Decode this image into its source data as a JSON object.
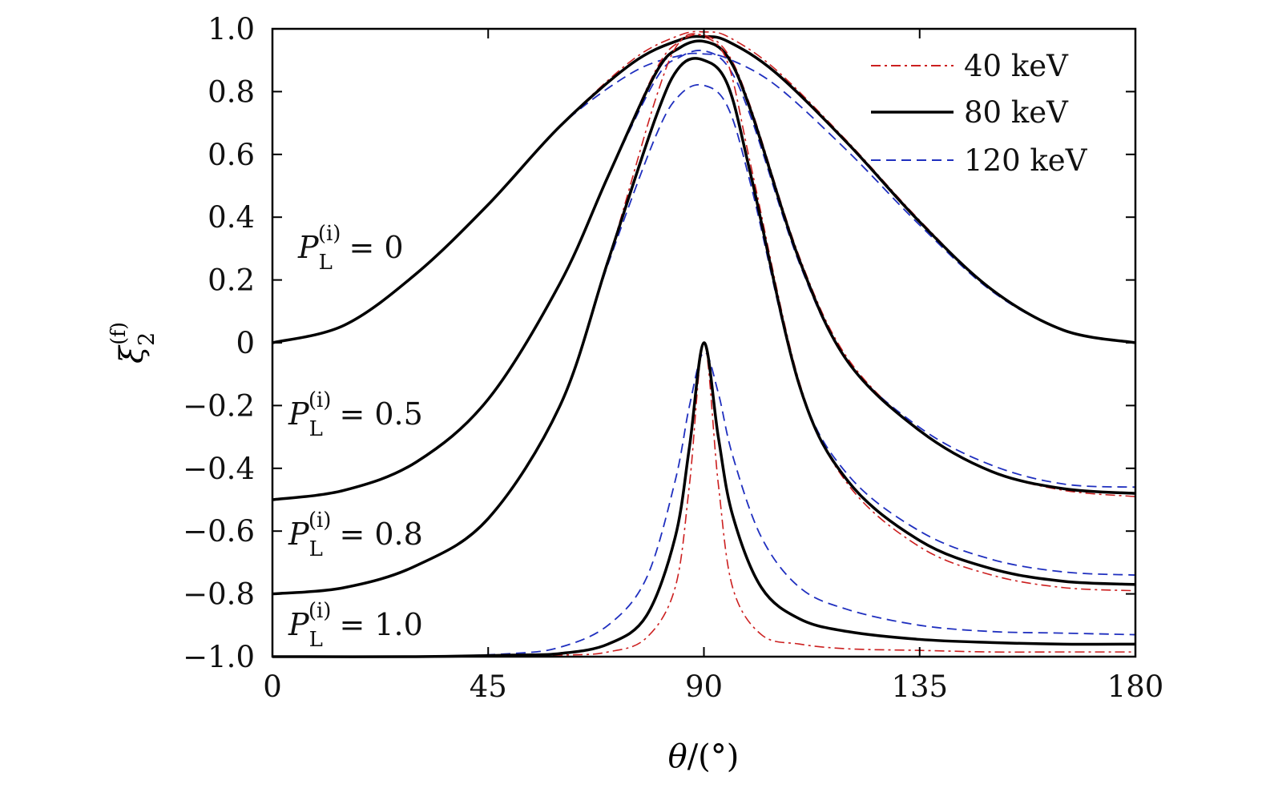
{
  "chart_data": {
    "type": "line",
    "xlabel_main": "θ",
    "xlabel_unit": "/(°)",
    "ylabel_main": "ξ",
    "ylabel_sub": "2",
    "ylabel_sup": "(f)",
    "xlim": [
      0,
      180
    ],
    "ylim": [
      -1.0,
      1.0
    ],
    "xticks": [
      0,
      45,
      90,
      135,
      180
    ],
    "xtick_labels": [
      "0",
      "45",
      "90",
      "135",
      "180"
    ],
    "yticks": [
      1.0,
      0.8,
      0.6,
      0.4,
      0.2,
      0,
      -0.2,
      -0.4,
      -0.6,
      -0.8,
      -1.0
    ],
    "ytick_labels": [
      "1.0",
      "0.8",
      "0.6",
      "0.4",
      "0.2",
      "0",
      "−0.2",
      "−0.4",
      "−0.6",
      "−0.8",
      "−1.0"
    ],
    "grid": false,
    "legend_position": "top-right",
    "legend": [
      {
        "label": "40 keV",
        "color": "#cc1f1f",
        "style": "dashdot"
      },
      {
        "label": "80 keV",
        "color": "#000000",
        "style": "solid"
      },
      {
        "label": "120 keV",
        "color": "#1f2fbf",
        "style": "dashed"
      }
    ],
    "curve_labels": [
      {
        "prefix": "P",
        "sub": "L",
        "sup": "(i)",
        "value": "= 0"
      },
      {
        "prefix": "P",
        "sub": "L",
        "sup": "(i)",
        "value": "= 0.5"
      },
      {
        "prefix": "P",
        "sub": "L",
        "sup": "(i)",
        "value": "= 0.8"
      },
      {
        "prefix": "P",
        "sub": "L",
        "sup": "(i)",
        "value": "= 1.0"
      }
    ],
    "groups": [
      {
        "PL": 0,
        "series": [
          {
            "energy": "40 keV",
            "x": [
              0,
              15,
              30,
              45,
              60,
              75,
              85,
              90,
              95,
              105,
              120,
              135,
              150,
              165,
              180
            ],
            "y": [
              0,
              0.056,
              0.22,
              0.44,
              0.69,
              0.9,
              0.98,
              0.99,
              0.975,
              0.87,
              0.64,
              0.39,
              0.17,
              0.04,
              0
            ]
          },
          {
            "energy": "80 keV",
            "x": [
              0,
              15,
              30,
              45,
              60,
              75,
              85,
              90,
              95,
              105,
              120,
              135,
              150,
              165,
              180
            ],
            "y": [
              0,
              0.056,
              0.22,
              0.44,
              0.69,
              0.89,
              0.965,
              0.975,
              0.96,
              0.86,
              0.635,
              0.385,
              0.17,
              0.04,
              0
            ]
          },
          {
            "energy": "120 keV",
            "x": [
              0,
              15,
              30,
              45,
              60,
              75,
              85,
              90,
              95,
              105,
              120,
              135,
              150,
              165,
              180
            ],
            "y": [
              0,
              0.056,
              0.22,
              0.44,
              0.69,
              0.86,
              0.915,
              0.92,
              0.905,
              0.82,
              0.61,
              0.375,
              0.165,
              0.04,
              0
            ]
          }
        ]
      },
      {
        "PL": 0.5,
        "series": [
          {
            "energy": "40 keV",
            "x": [
              0,
              15,
              30,
              45,
              60,
              70,
              80,
              85,
              90,
              95,
              100,
              110,
              120,
              135,
              150,
              165,
              180
            ],
            "y": [
              -0.5,
              -0.47,
              -0.38,
              -0.18,
              0.19,
              0.53,
              0.87,
              0.96,
              0.98,
              0.92,
              0.74,
              0.27,
              -0.05,
              -0.28,
              -0.41,
              -0.47,
              -0.49
            ]
          },
          {
            "energy": "80 keV",
            "x": [
              0,
              15,
              30,
              45,
              60,
              70,
              80,
              85,
              90,
              95,
              100,
              110,
              120,
              135,
              150,
              165,
              180
            ],
            "y": [
              -0.5,
              -0.47,
              -0.38,
              -0.18,
              0.19,
              0.53,
              0.86,
              0.94,
              0.96,
              0.91,
              0.73,
              0.26,
              -0.06,
              -0.28,
              -0.41,
              -0.465,
              -0.48
            ]
          },
          {
            "energy": "120 keV",
            "x": [
              0,
              15,
              30,
              45,
              60,
              70,
              80,
              85,
              90,
              95,
              100,
              110,
              120,
              135,
              150,
              165,
              180
            ],
            "y": [
              -0.5,
              -0.47,
              -0.38,
              -0.18,
              0.19,
              0.53,
              0.84,
              0.91,
              0.93,
              0.88,
              0.71,
              0.25,
              -0.06,
              -0.27,
              -0.39,
              -0.45,
              -0.46
            ]
          }
        ]
      },
      {
        "PL": 0.8,
        "series": [
          {
            "energy": "40 keV",
            "x": [
              0,
              15,
              30,
              45,
              60,
              70,
              80,
              85,
              90,
              95,
              100,
              110,
              120,
              135,
              150,
              165,
              180
            ],
            "y": [
              -0.8,
              -0.78,
              -0.71,
              -0.56,
              -0.2,
              0.26,
              0.78,
              0.96,
              0.975,
              0.89,
              0.55,
              -0.13,
              -0.45,
              -0.65,
              -0.74,
              -0.78,
              -0.79
            ]
          },
          {
            "energy": "80 keV",
            "x": [
              0,
              15,
              30,
              45,
              60,
              70,
              80,
              85,
              90,
              95,
              100,
              110,
              120,
              135,
              150,
              165,
              180
            ],
            "y": [
              -0.8,
              -0.78,
              -0.71,
              -0.56,
              -0.2,
              0.26,
              0.72,
              0.88,
              0.9,
              0.82,
              0.52,
              -0.14,
              -0.44,
              -0.63,
              -0.72,
              -0.76,
              -0.77
            ]
          },
          {
            "energy": "120 keV",
            "x": [
              0,
              15,
              30,
              45,
              60,
              70,
              80,
              85,
              90,
              95,
              100,
              110,
              120,
              135,
              150,
              165,
              180
            ],
            "y": [
              -0.8,
              -0.78,
              -0.71,
              -0.56,
              -0.2,
              0.25,
              0.66,
              0.79,
              0.82,
              0.75,
              0.49,
              -0.14,
              -0.42,
              -0.6,
              -0.69,
              -0.73,
              -0.74
            ]
          }
        ]
      },
      {
        "PL": 1.0,
        "series": [
          {
            "energy": "40 keV",
            "x": [
              0,
              30,
              60,
              70,
              78,
              84,
              87,
              90,
              93,
              96,
              102,
              110,
              120,
              135,
              150,
              165,
              180
            ],
            "y": [
              -1.0,
              -1.0,
              -0.995,
              -0.985,
              -0.94,
              -0.78,
              -0.45,
              0,
              -0.45,
              -0.78,
              -0.93,
              -0.96,
              -0.975,
              -0.98,
              -0.985,
              -0.985,
              -0.985
            ]
          },
          {
            "energy": "80 keV",
            "x": [
              0,
              30,
              50,
              60,
              70,
              78,
              84,
              87,
              90,
              93,
              96,
              102,
              110,
              120,
              135,
              150,
              165,
              180
            ],
            "y": [
              -1.0,
              -1.0,
              -0.995,
              -0.99,
              -0.96,
              -0.87,
              -0.62,
              -0.33,
              0,
              -0.3,
              -0.55,
              -0.78,
              -0.88,
              -0.92,
              -0.945,
              -0.955,
              -0.96,
              -0.96
            ]
          },
          {
            "energy": "120 keV",
            "x": [
              0,
              30,
              50,
              60,
              70,
              78,
              84,
              87,
              90,
              93,
              96,
              102,
              110,
              120,
              135,
              150,
              165,
              180
            ],
            "y": [
              -1.0,
              -1.0,
              -0.99,
              -0.97,
              -0.9,
              -0.75,
              -0.44,
              -0.2,
              -0.03,
              -0.16,
              -0.36,
              -0.62,
              -0.78,
              -0.85,
              -0.9,
              -0.92,
              -0.925,
              -0.93
            ]
          }
        ]
      }
    ]
  }
}
